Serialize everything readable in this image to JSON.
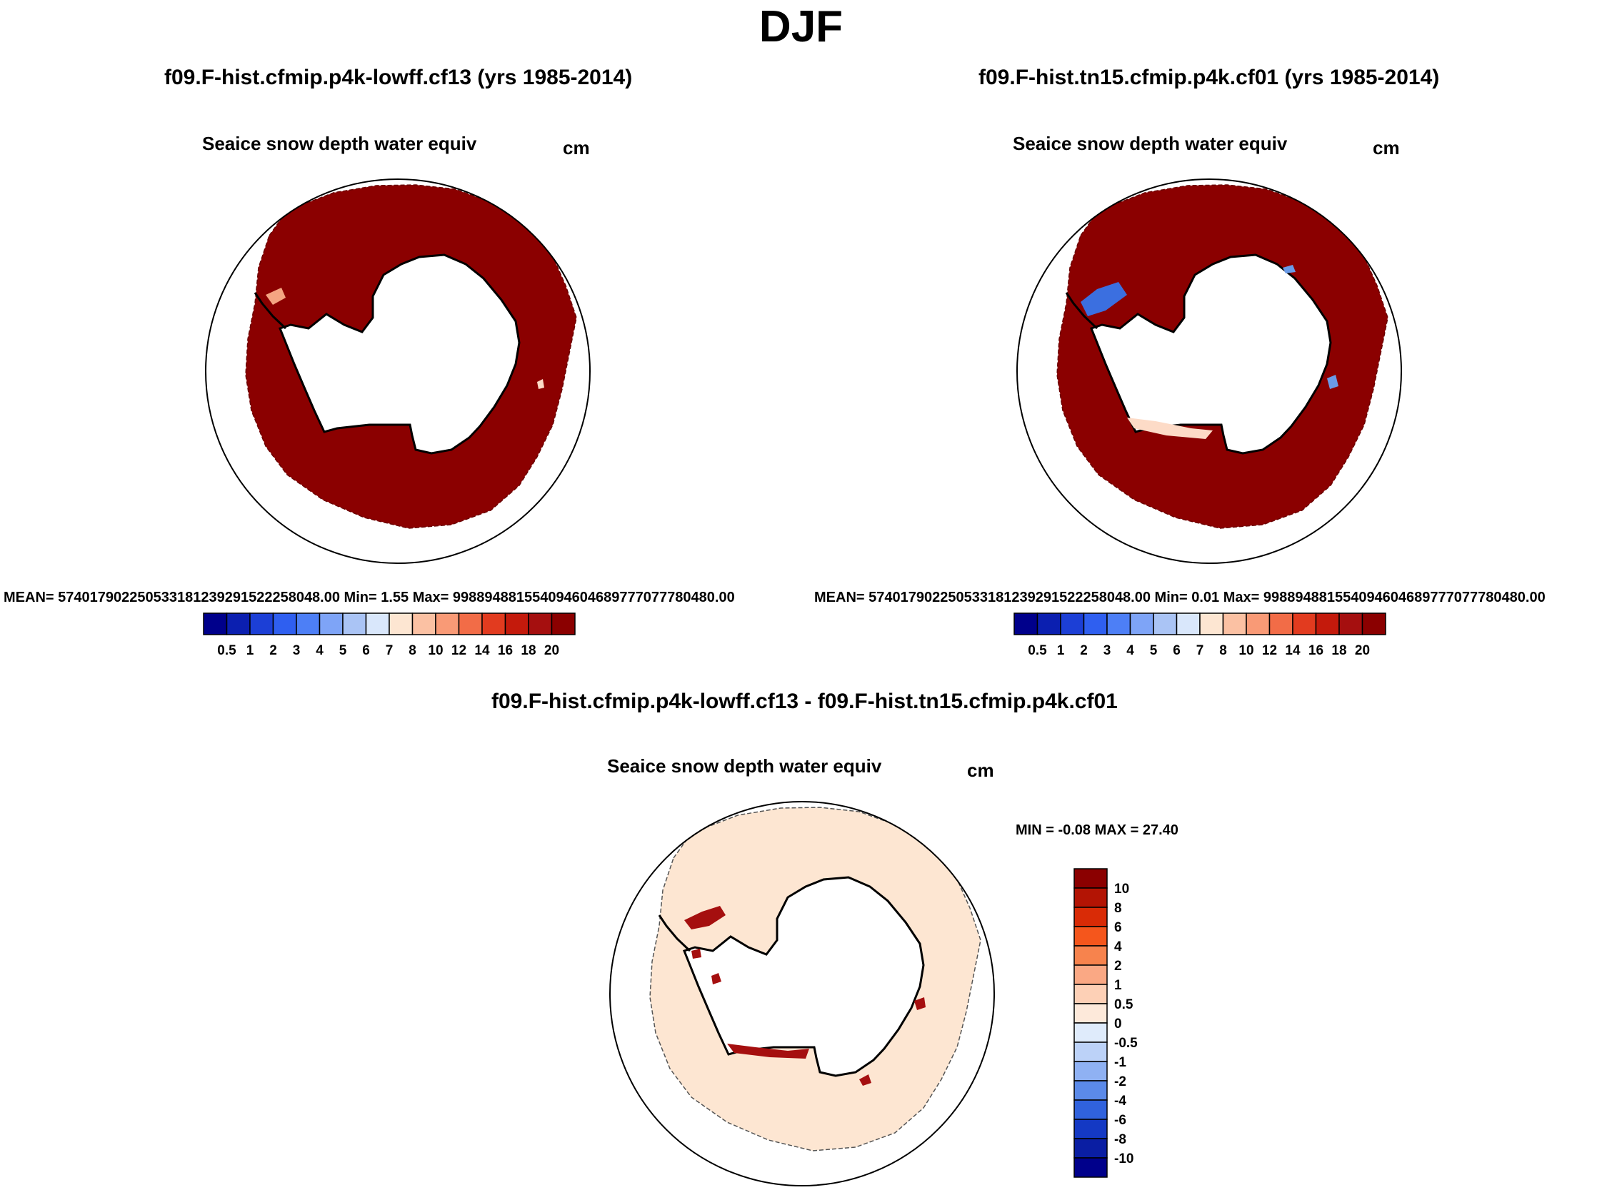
{
  "figure": {
    "title": "DJF"
  },
  "panels": [
    {
      "case_title": "f09.F-hist.cfmip.p4k-lowff.cf13 (yrs 1985-2014)",
      "variable": "Seaice snow depth water equiv",
      "units": "cm",
      "stats": "MEAN= 574017902250533181239291522258048.00  Min=   1.55  Max= 998894881554094604689777077780480.00",
      "anomaly_patches": [
        {
          "location": "Antarctic Peninsula coast",
          "color": "#f4a582"
        },
        {
          "location": "East Antarctic coast",
          "color": "#fddbc7"
        }
      ]
    },
    {
      "case_title": "f09.F-hist.tn15.cfmip.p4k.cf01 (yrs 1985-2014)",
      "variable": "Seaice snow depth water equiv",
      "units": "cm",
      "stats": "MEAN= 574017902250533181239291522258048.00  Min=   0.01  Max= 998894881554094604689777077780480.00",
      "anomaly_patches": [
        {
          "location": "Weddell Sea",
          "color": "#3b6fe0"
        },
        {
          "location": "Ross Sea coast",
          "color": "#fddbc7"
        },
        {
          "location": "East Antarctic coast",
          "color": "#6a9be8"
        }
      ]
    },
    {
      "case_title": "f09.F-hist.cfmip.p4k-lowff.cf13 - f09.F-hist.tn15.cfmip.p4k.cf01",
      "variable": "Seaice snow depth water equiv",
      "units": "cm",
      "stats": "MIN =  -0.08 MAX =  27.40"
    }
  ],
  "chart_data": {
    "type": "map",
    "projection": "south polar stereographic",
    "season": "DJF",
    "field_colors": {
      "case_panels_fill": "#8b0000",
      "difference_fill": "#fde6d2",
      "difference_highs": "#a50f0f",
      "continent_outline": "#000000"
    },
    "case_colorbar": {
      "orientation": "horizontal",
      "labels": [
        "0.5",
        "1",
        "2",
        "3",
        "4",
        "5",
        "6",
        "7",
        "8",
        "10",
        "12",
        "14",
        "16",
        "18",
        "20"
      ],
      "colors": [
        "#00008b",
        "#0b1fb0",
        "#1c3fd6",
        "#2f5ff0",
        "#4d7ff6",
        "#7ea4f7",
        "#aac4f5",
        "#d9e7fb",
        "#fde6d2",
        "#fbc1a3",
        "#f99a76",
        "#f26c47",
        "#e23b1f",
        "#c41a0c",
        "#a50f0f",
        "#8b0000"
      ]
    },
    "diff_colorbar": {
      "orientation": "vertical",
      "labels": [
        "10",
        "8",
        "6",
        "4",
        "2",
        "1",
        "0.5",
        "0",
        "-0.5",
        "-1",
        "-2",
        "-4",
        "-6",
        "-8",
        "-10"
      ],
      "colors": [
        "#8b0000",
        "#b31404",
        "#d92b06",
        "#f5561c",
        "#f7834d",
        "#faa884",
        "#fdd0b6",
        "#fde9da",
        "#dfebfb",
        "#bcd2f8",
        "#8fb1f3",
        "#5b8ae9",
        "#3062dd",
        "#1439c4",
        "#0a1ea3",
        "#00008b"
      ]
    }
  }
}
